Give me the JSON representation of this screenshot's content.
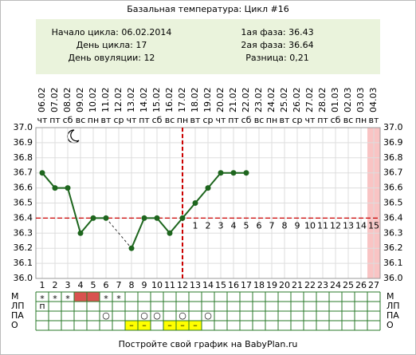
{
  "chart_data": {
    "type": "line",
    "title": "Базальная температура: Цикл #16",
    "info_left": [
      "Начало цикла: 06.02.2014",
      "День цикла: 17",
      "День овуляции: 12"
    ],
    "info_right": [
      "1ая фаза: 36.43",
      "2ая фаза: 36.64",
      "Разница: 0,21"
    ],
    "x": [
      1,
      2,
      3,
      4,
      5,
      6,
      7,
      8,
      9,
      10,
      11,
      12,
      13,
      14,
      15,
      16,
      17,
      18,
      19,
      20,
      21,
      22,
      23,
      24,
      25,
      26,
      27
    ],
    "dates": [
      "06.02",
      "07.02",
      "08.02",
      "09.02",
      "10.02",
      "11.02",
      "12.02",
      "13.02",
      "14.02",
      "15.02",
      "16.02",
      "17.02",
      "18.02",
      "19.02",
      "20.02",
      "21.02",
      "22.02",
      "23.02",
      "24.02",
      "25.02",
      "26.02",
      "27.02",
      "28.02",
      "01.03",
      "02.03",
      "03.03",
      "04.03"
    ],
    "weekdays": [
      "чт",
      "пт",
      "сб",
      "вс",
      "пн",
      "вт",
      "ср",
      "чт",
      "пт",
      "сб",
      "вс",
      "пн",
      "вт",
      "ср",
      "чт",
      "пт",
      "сб",
      "вс",
      "пн",
      "вт",
      "ср",
      "чт",
      "пт",
      "сб",
      "вс",
      "пн",
      "вт"
    ],
    "values": [
      36.7,
      36.6,
      36.6,
      36.3,
      36.4,
      36.4,
      null,
      36.2,
      36.4,
      36.4,
      36.3,
      36.4,
      36.5,
      36.6,
      36.7,
      36.7,
      36.7,
      null,
      null,
      null,
      null,
      null,
      null,
      null,
      null,
      null,
      null
    ],
    "color": "#1e661e",
    "ylim": [
      36,
      37
    ],
    "yticks": [
      {
        "value": 36,
        "label": "36.0"
      },
      36.1,
      36.2,
      36.3,
      36.4,
      36.5,
      36.6,
      36.7,
      36.8,
      36.9,
      {
        "value": 37,
        "label": "37.0"
      }
    ],
    "grid": true,
    "coverline": 36.4,
    "coverline_color": "#cc0000",
    "ovulation_day": 12,
    "luteal_day_labels": [
      1,
      2,
      3,
      4,
      5,
      6,
      7,
      8,
      9,
      10,
      11,
      12,
      13,
      14,
      15
    ],
    "highlight_day": 27,
    "highlight_color": "#f9c4c4"
  },
  "table": {
    "rows": [
      {
        "label": "М",
        "text_color": "#d04040",
        "fill_color": "#d9534f",
        "fill": [
          4,
          5
        ],
        "cells": [
          "*",
          "*",
          "*",
          null,
          null,
          "*",
          "*",
          null,
          null,
          null,
          null,
          null,
          null,
          null,
          null,
          null,
          null,
          null,
          null,
          null,
          null,
          null,
          null,
          null,
          null,
          null,
          null
        ]
      },
      {
        "label": "ЛП",
        "text_color": "#000000",
        "cells": [
          "п",
          null,
          null,
          null,
          null,
          null,
          null,
          null,
          null,
          null,
          null,
          null,
          null,
          null,
          null,
          null,
          null,
          null,
          null,
          null,
          null,
          null,
          null,
          null,
          null,
          null,
          null
        ]
      },
      {
        "label": "ПА",
        "text_color": "#d04040",
        "cells": [
          null,
          null,
          null,
          null,
          null,
          "○",
          null,
          null,
          "○",
          "○",
          null,
          "○",
          null,
          "○",
          null,
          null,
          null,
          null,
          null,
          null,
          null,
          null,
          null,
          null,
          null,
          null,
          null
        ]
      },
      {
        "label": "О",
        "text_color": "#000000",
        "fill_color": "#ffff00",
        "fill": [
          8,
          9,
          11,
          12,
          13
        ],
        "cells": [
          null,
          null,
          null,
          null,
          null,
          null,
          null,
          "–",
          "–",
          null,
          "–",
          "–",
          "–",
          null,
          null,
          null,
          null,
          null,
          null,
          null,
          null,
          null,
          null,
          null,
          null,
          null,
          null
        ]
      }
    ]
  },
  "footer": "Постройте свой график на BabyPlan.ru"
}
